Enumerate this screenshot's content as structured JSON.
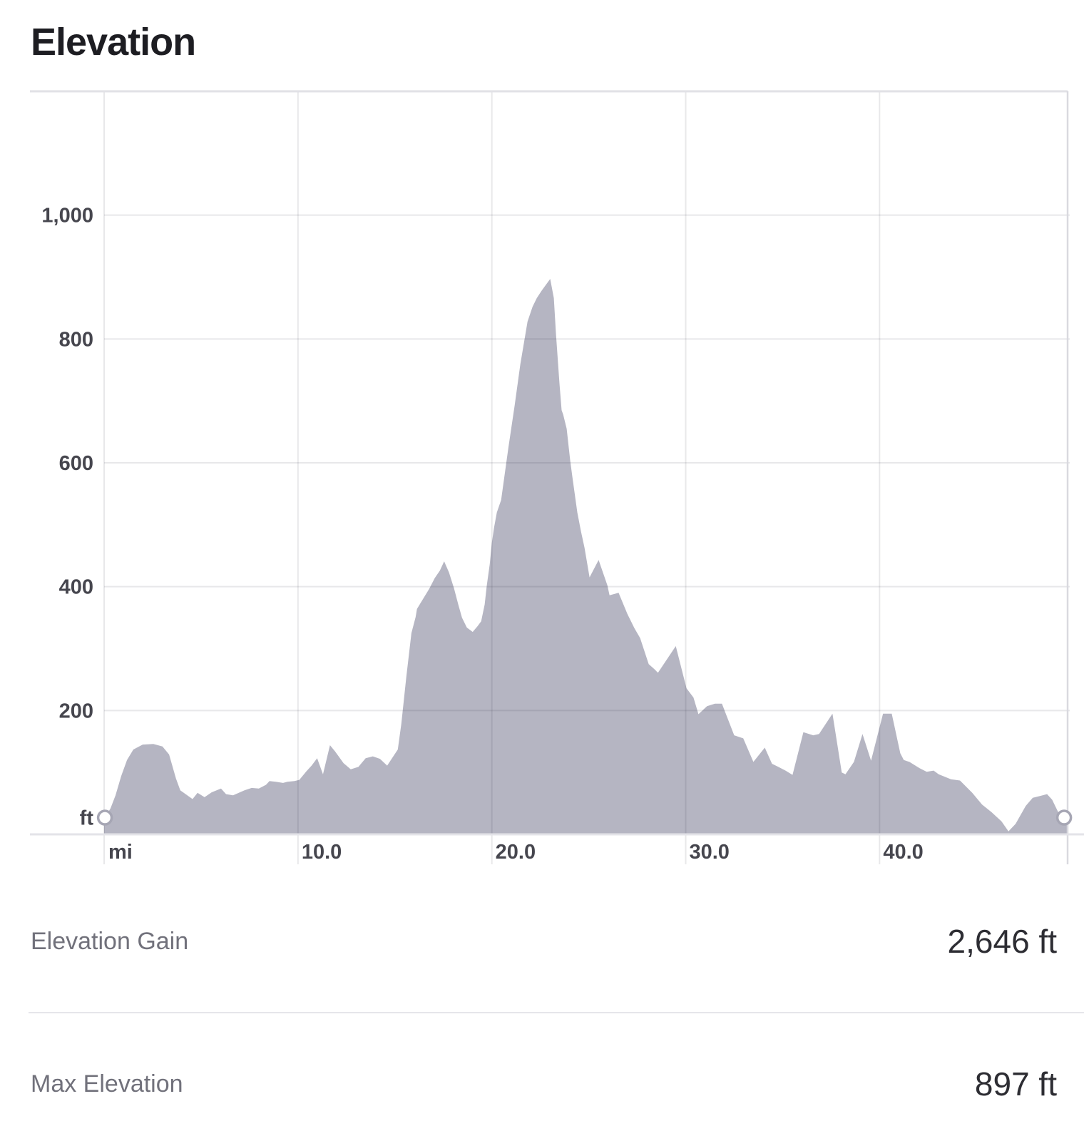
{
  "page": {
    "title": "Elevation"
  },
  "chart_data": {
    "type": "area",
    "title": "Elevation",
    "x_unit_label": "mi",
    "y_unit_label": "ft",
    "x_range": [
      0,
      49.7
    ],
    "y_range": [
      0,
      1200
    ],
    "x_ticks": [
      {
        "value": 10,
        "label": "10.0"
      },
      {
        "value": 20,
        "label": "20.0"
      },
      {
        "value": 30,
        "label": "30.0"
      },
      {
        "value": 40,
        "label": "40.0"
      }
    ],
    "y_ticks": [
      {
        "value": 200,
        "label": "200"
      },
      {
        "value": 400,
        "label": "400"
      },
      {
        "value": 600,
        "label": "600"
      },
      {
        "value": 800,
        "label": "800"
      },
      {
        "value": 1000,
        "label": "1,000"
      }
    ],
    "grid": true,
    "legend": "none",
    "area_fill_color": "#b5b5c2",
    "marker_stroke_color": "#a6a6b4",
    "x_miles": [
      0.04,
      0.33,
      0.59,
      0.88,
      1.18,
      1.51,
      1.99,
      2.54,
      3.01,
      3.35,
      3.71,
      3.93,
      4.56,
      4.82,
      5.18,
      5.55,
      6.03,
      6.29,
      6.65,
      7.24,
      7.61,
      7.98,
      8.35,
      8.53,
      8.86,
      9.23,
      9.45,
      9.82,
      10.07,
      10.44,
      10.7,
      10.99,
      11.29,
      11.65,
      11.91,
      12.35,
      12.72,
      13.12,
      13.49,
      13.86,
      14.23,
      14.6,
      15.15,
      15.33,
      15.59,
      15.85,
      16.07,
      16.14,
      16.43,
      16.76,
      17.06,
      17.32,
      17.54,
      17.79,
      18.05,
      18.27,
      18.46,
      18.71,
      19.01,
      19.26,
      19.45,
      19.63,
      19.74,
      19.89,
      20.0,
      20.11,
      20.26,
      20.48,
      20.85,
      21.18,
      21.47,
      21.84,
      22.1,
      22.32,
      22.57,
      23.01,
      23.2,
      23.31,
      23.49,
      23.6,
      23.68,
      23.86,
      24.04,
      24.15,
      24.41,
      24.6,
      24.78,
      25.04,
      25.51,
      25.96,
      26.07,
      26.54,
      26.99,
      27.35,
      27.65,
      28.09,
      28.38,
      28.57,
      29.49,
      30.04,
      30.4,
      30.66,
      31.1,
      31.51,
      31.87,
      32.5,
      32.97,
      33.49,
      34.08,
      34.45,
      34.78,
      35.15,
      35.51,
      36.07,
      36.58,
      36.88,
      37.57,
      38.05,
      38.24,
      38.68,
      39.12,
      39.56,
      40.18,
      40.63,
      41.07,
      41.25,
      41.54,
      42.06,
      42.43,
      42.79,
      43.05,
      43.68,
      44.15,
      44.78,
      45.29,
      45.77,
      46.29,
      46.65,
      47.02,
      47.54,
      47.9,
      48.27,
      48.64,
      48.9,
      49.26,
      49.52
    ],
    "elevation_ft": [
      27,
      42,
      63,
      94,
      120,
      137,
      145,
      146,
      142,
      129,
      90,
      71,
      57,
      67,
      60,
      68,
      74,
      65,
      63,
      71,
      75,
      74,
      80,
      86,
      85,
      83,
      85,
      86,
      88,
      102,
      111,
      123,
      97,
      144,
      134,
      115,
      105,
      109,
      123,
      126,
      122,
      111,
      137,
      178,
      255,
      325,
      351,
      364,
      379,
      396,
      414,
      426,
      441,
      423,
      397,
      371,
      350,
      334,
      327,
      336,
      344,
      371,
      402,
      436,
      471,
      495,
      520,
      540,
      624,
      693,
      759,
      828,
      852,
      866,
      878,
      897,
      866,
      808,
      728,
      685,
      678,
      655,
      604,
      578,
      520,
      489,
      463,
      415,
      443,
      402,
      386,
      390,
      356,
      333,
      317,
      275,
      267,
      261,
      304,
      236,
      221,
      194,
      207,
      211,
      211,
      160,
      155,
      117,
      140,
      114,
      109,
      103,
      96,
      165,
      160,
      162,
      195,
      100,
      97,
      117,
      162,
      119,
      195,
      195,
      131,
      120,
      117,
      107,
      101,
      103,
      97,
      89,
      87,
      67,
      48,
      36,
      21,
      5,
      17,
      46,
      59,
      62,
      65,
      56,
      33,
      27
    ]
  },
  "stats": [
    {
      "label": "Elevation Gain",
      "value": "2,646 ft"
    },
    {
      "label": "Max Elevation",
      "value": "897 ft"
    }
  ]
}
